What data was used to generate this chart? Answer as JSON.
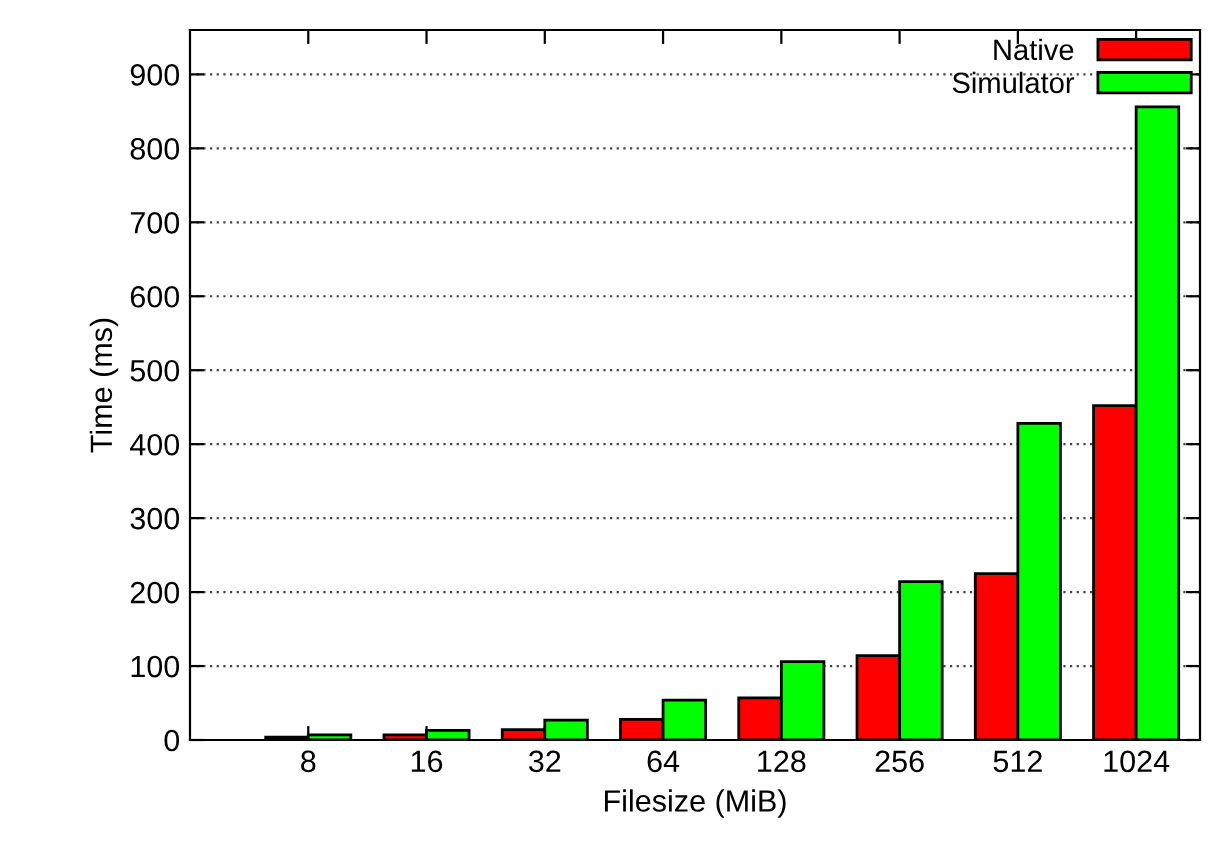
{
  "chart_data": {
    "type": "bar",
    "xlabel": "Filesize (MiB)",
    "ylabel": "Time (ms)",
    "categories": [
      "8",
      "16",
      "32",
      "64",
      "128",
      "256",
      "512",
      "1024"
    ],
    "series": [
      {
        "name": "Native",
        "color": "#ff0000",
        "values": [
          4,
          7,
          14,
          28,
          57,
          114,
          225,
          452
        ]
      },
      {
        "name": "Simulator",
        "color": "#00ff00",
        "values": [
          7,
          13,
          27,
          54,
          106,
          214,
          428,
          856
        ]
      }
    ],
    "ylim": [
      0,
      960
    ],
    "yticks": [
      0,
      100,
      200,
      300,
      400,
      500,
      600,
      700,
      800,
      900
    ],
    "grid": "y",
    "legend": "top right"
  }
}
